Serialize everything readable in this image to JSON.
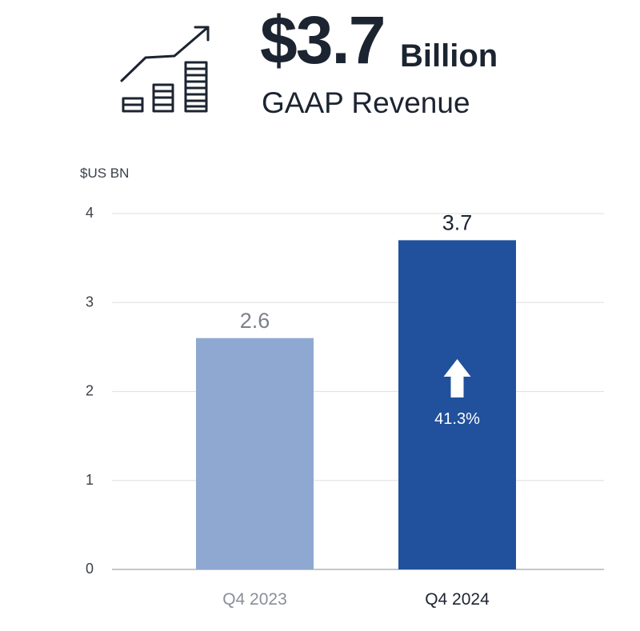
{
  "headline": {
    "value": "$3.7",
    "unit": "Billion",
    "caption": "GAAP Revenue",
    "icon": "growth-bar-chart-icon"
  },
  "chart_data": {
    "type": "bar",
    "categories": [
      "Q4 2023",
      "Q4 2024"
    ],
    "values": [
      2.6,
      3.7
    ],
    "value_labels": [
      "2.6",
      "3.7"
    ],
    "ylabel": "$US BN",
    "ylim": [
      0,
      4
    ],
    "yticks": [
      0,
      1,
      2,
      3,
      4
    ],
    "grid": true,
    "colors": [
      "#8fa8d2",
      "#21519c"
    ],
    "annotation": {
      "bar": 1,
      "direction": "up",
      "text": "41.3%"
    }
  }
}
